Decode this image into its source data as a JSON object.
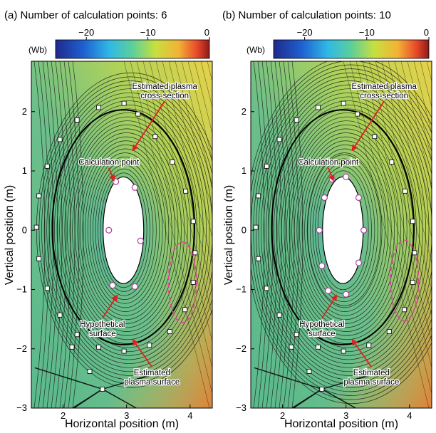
{
  "figure": {
    "ylabel": "Vertical position (m)",
    "colorbar_unit": "(Wb)"
  },
  "chart_data": [
    {
      "type": "contour",
      "title": "(a) Number of calculation points: 6",
      "num_calc_points": 6,
      "xlabel": "Horizontal position (m)",
      "ylabel": "Vertical position (m)",
      "xlim": [
        1.5,
        4.35
      ],
      "ylim": [
        -3,
        2.85
      ],
      "x_ticks": [
        2,
        3,
        4
      ],
      "y_ticks": [
        -3,
        -2,
        -1,
        0,
        1,
        2
      ],
      "colorbar": {
        "unit": "(Wb)",
        "range": [
          -25,
          0
        ],
        "ticks": [
          -20,
          -10,
          0
        ]
      },
      "grid": false,
      "hypothetical_surface": {
        "center": [
          2.95,
          0.0
        ],
        "semi_axes": [
          0.32,
          0.9
        ]
      },
      "calculation_points": [
        [
          2.83,
          0.82
        ],
        [
          3.13,
          0.72
        ],
        [
          3.22,
          -0.18
        ],
        [
          3.13,
          -0.95
        ],
        [
          2.78,
          -0.93
        ],
        [
          2.72,
          0.0
        ]
      ],
      "estimated_plasma_surface": {
        "center": [
          2.95,
          0.05
        ],
        "semi_axes": [
          1.12,
          1.98
        ]
      },
      "estimated_plasma_surface_points": [
        [
          2.96,
          2.14
        ],
        [
          2.56,
          2.07
        ],
        [
          2.22,
          1.86
        ],
        [
          1.95,
          1.53
        ],
        [
          1.75,
          1.08
        ],
        [
          1.62,
          0.58
        ],
        [
          1.58,
          0.05
        ],
        [
          1.62,
          -0.48
        ],
        [
          1.75,
          -0.98
        ],
        [
          1.95,
          -1.43
        ],
        [
          2.22,
          -1.76
        ],
        [
          2.56,
          -1.97
        ],
        [
          2.96,
          -2.04
        ],
        [
          3.36,
          -1.94
        ],
        [
          3.68,
          -1.71
        ],
        [
          3.92,
          -1.34
        ],
        [
          4.05,
          -0.88
        ],
        [
          4.08,
          -0.38
        ],
        [
          4.05,
          0.15
        ],
        [
          3.93,
          0.66
        ],
        [
          3.72,
          1.15
        ],
        [
          3.45,
          1.58
        ],
        [
          3.18,
          1.96
        ],
        [
          2.14,
          -1.97
        ],
        [
          2.42,
          -2.38
        ],
        [
          2.62,
          -2.68
        ]
      ],
      "estimated_plasma_cross_section": {
        "center": [
          3.88,
          -0.88
        ],
        "semi_axes": [
          0.22,
          0.68
        ]
      },
      "annotations": [
        {
          "text_lines": [
            "Estimated plasma",
            "cross-section"
          ],
          "x": 3.6,
          "y": 2.38,
          "arrow_to": [
            3.1,
            1.35
          ]
        },
        {
          "text_lines": [
            "Calculation point"
          ],
          "x": 2.72,
          "y": 1.1,
          "arrow_to": [
            2.8,
            0.84
          ]
        },
        {
          "text_lines": [
            "Hypothetical",
            "surface"
          ],
          "x": 2.62,
          "y": -1.63,
          "arrow_to": [
            2.85,
            -1.1
          ]
        },
        {
          "text_lines": [
            "Estimated",
            "plasma surface"
          ],
          "x": 3.4,
          "y": -2.45,
          "arrow_to": [
            3.1,
            -1.85
          ]
        }
      ]
    },
    {
      "type": "contour",
      "title": "(b) Number of calculation points: 10",
      "num_calc_points": 10,
      "xlabel": "Horizontal position (m)",
      "ylabel": "Vertical position (m)",
      "xlim": [
        1.5,
        4.35
      ],
      "ylim": [
        -3,
        2.85
      ],
      "x_ticks": [
        2,
        3,
        4
      ],
      "y_ticks": [
        -3,
        -2,
        -1,
        0,
        1,
        2
      ],
      "colorbar": {
        "unit": "(Wb)",
        "range": [
          -25,
          0
        ],
        "ticks": [
          -20,
          -10,
          0
        ]
      },
      "grid": false,
      "hypothetical_surface": {
        "center": [
          2.95,
          0.0
        ],
        "semi_axes": [
          0.32,
          0.9
        ]
      },
      "calculation_points": [
        [
          3.0,
          0.9
        ],
        [
          3.2,
          0.55
        ],
        [
          3.28,
          0.0
        ],
        [
          3.2,
          -0.55
        ],
        [
          3.0,
          -1.08
        ],
        [
          2.72,
          -1.02
        ],
        [
          2.62,
          -0.6
        ],
        [
          2.58,
          0.0
        ],
        [
          2.66,
          0.55
        ],
        [
          2.78,
          0.86
        ]
      ],
      "estimated_plasma_surface": {
        "center": [
          2.95,
          0.05
        ],
        "semi_axes": [
          1.12,
          1.98
        ]
      },
      "estimated_plasma_surface_points": [
        [
          2.96,
          2.14
        ],
        [
          2.56,
          2.07
        ],
        [
          2.22,
          1.86
        ],
        [
          1.95,
          1.53
        ],
        [
          1.75,
          1.08
        ],
        [
          1.62,
          0.58
        ],
        [
          1.58,
          0.05
        ],
        [
          1.62,
          -0.48
        ],
        [
          1.75,
          -0.98
        ],
        [
          1.95,
          -1.43
        ],
        [
          2.22,
          -1.76
        ],
        [
          2.56,
          -1.97
        ],
        [
          2.96,
          -2.04
        ],
        [
          3.36,
          -1.94
        ],
        [
          3.68,
          -1.71
        ],
        [
          3.92,
          -1.34
        ],
        [
          4.05,
          -0.88
        ],
        [
          4.08,
          -0.38
        ],
        [
          4.05,
          0.15
        ],
        [
          3.93,
          0.66
        ],
        [
          3.72,
          1.15
        ],
        [
          3.45,
          1.58
        ],
        [
          3.18,
          1.96
        ],
        [
          2.14,
          -1.97
        ],
        [
          2.42,
          -2.38
        ],
        [
          2.62,
          -2.68
        ]
      ],
      "estimated_plasma_cross_section": {
        "center": [
          3.92,
          -0.85
        ],
        "semi_axes": [
          0.22,
          0.68
        ]
      },
      "annotations": [
        {
          "text_lines": [
            "Estimated plasma",
            "cross-section"
          ],
          "x": 3.6,
          "y": 2.38,
          "arrow_to": [
            3.1,
            1.35
          ]
        },
        {
          "text_lines": [
            "Calculation point"
          ],
          "x": 2.72,
          "y": 1.1,
          "arrow_to": [
            2.8,
            0.84
          ]
        },
        {
          "text_lines": [
            "Hypothetical",
            "surface"
          ],
          "x": 2.62,
          "y": -1.63,
          "arrow_to": [
            2.85,
            -1.1
          ]
        },
        {
          "text_lines": [
            "Estimated",
            "plasma surface"
          ],
          "x": 3.4,
          "y": -2.45,
          "arrow_to": [
            3.1,
            -1.85
          ]
        }
      ]
    }
  ]
}
